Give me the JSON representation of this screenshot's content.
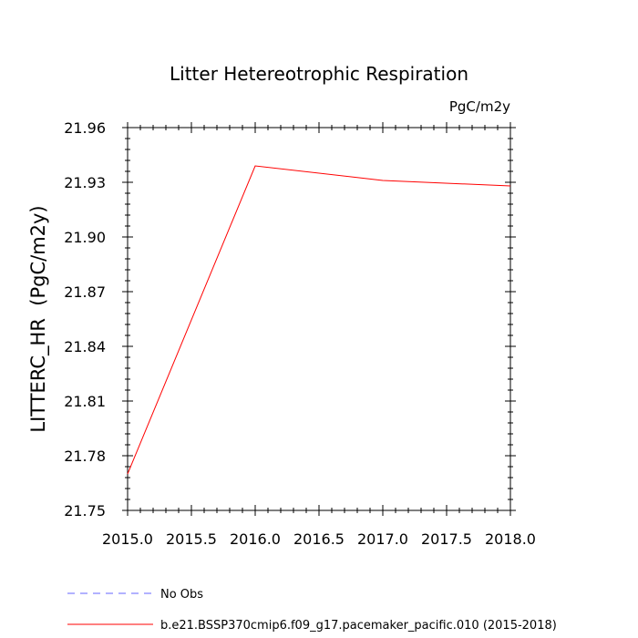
{
  "chart_data": {
    "type": "line",
    "title": "Litter Hetereotrophic Respiration",
    "units_label": "PgC/m2y",
    "xlabel": "",
    "ylabel": "LITTERC_HR  (PgC/m2y)",
    "xlim": [
      2015.0,
      2018.0
    ],
    "ylim": [
      21.75,
      21.96
    ],
    "x_ticks": [
      2015.0,
      2015.5,
      2016.0,
      2016.5,
      2017.0,
      2017.5,
      2018.0
    ],
    "x_tick_labels": [
      "2015.0",
      "2015.5",
      "2016.0",
      "2016.5",
      "2017.0",
      "2017.5",
      "2018.0"
    ],
    "y_ticks": [
      21.75,
      21.78,
      21.81,
      21.84,
      21.87,
      21.9,
      21.93,
      21.96
    ],
    "y_tick_labels": [
      "21.75",
      "21.78",
      "21.81",
      "21.84",
      "21.87",
      "21.90",
      "21.93",
      "21.96"
    ],
    "x_minor_step": 0.1,
    "y_minor_step": 0.006,
    "grid": false,
    "legend_position": "bottom-left",
    "series": [
      {
        "name": "No Obs",
        "color": "#6666ff",
        "dash": "dashed",
        "x": [],
        "values": []
      },
      {
        "name": "b.e21.BSSP370cmip6.f09_g17.pacemaker_pacific.010 (2015-2018)",
        "color": "#ff0000",
        "dash": "solid",
        "x": [
          2015.0,
          2016.0,
          2017.0,
          2018.0
        ],
        "values": [
          21.77,
          21.939,
          21.931,
          21.928
        ]
      }
    ]
  }
}
